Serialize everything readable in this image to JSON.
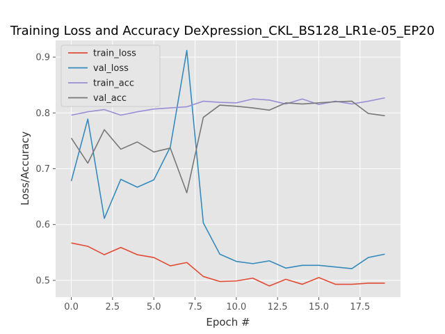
{
  "chart_data": {
    "type": "line",
    "title": "Training Loss and Accuracy DeXpression_CKL_BS128_LR1e-05_EP20",
    "xlabel": "Epoch #",
    "ylabel": "Loss/Accuracy",
    "xlim": [
      -0.95,
      19.95
    ],
    "ylim": [
      0.47,
      0.93
    ],
    "xticks": [
      0.0,
      2.5,
      5.0,
      7.5,
      10.0,
      12.5,
      15.0,
      17.5
    ],
    "xtick_labels": [
      "0.0",
      "2.5",
      "5.0",
      "7.5",
      "10.0",
      "12.5",
      "15.0",
      "17.5"
    ],
    "yticks": [
      0.5,
      0.6,
      0.7,
      0.8,
      0.9
    ],
    "ytick_labels": [
      "0.5",
      "0.6",
      "0.7",
      "0.8",
      "0.9"
    ],
    "grid": true,
    "legend_position": "top-left",
    "x": [
      0,
      1,
      2,
      3,
      4,
      5,
      6,
      7,
      8,
      9,
      10,
      11,
      12,
      13,
      14,
      15,
      16,
      17,
      18,
      19
    ],
    "series": [
      {
        "name": "train_loss",
        "color": "#e24a33",
        "values": [
          0.567,
          0.561,
          0.546,
          0.559,
          0.546,
          0.541,
          0.526,
          0.532,
          0.507,
          0.498,
          0.499,
          0.504,
          0.49,
          0.502,
          0.493,
          0.505,
          0.493,
          0.493,
          0.495,
          0.495
        ]
      },
      {
        "name": "val_loss",
        "color": "#348abd",
        "values": [
          0.678,
          0.789,
          0.611,
          0.681,
          0.667,
          0.68,
          0.739,
          0.912,
          0.603,
          0.547,
          0.534,
          0.53,
          0.535,
          0.522,
          0.527,
          0.527,
          0.524,
          0.521,
          0.541,
          0.547
        ]
      },
      {
        "name": "train_acc",
        "color": "#988ed5",
        "values": [
          0.796,
          0.802,
          0.806,
          0.796,
          0.802,
          0.807,
          0.809,
          0.811,
          0.821,
          0.819,
          0.818,
          0.825,
          0.823,
          0.816,
          0.825,
          0.815,
          0.821,
          0.816,
          0.821,
          0.827
        ]
      },
      {
        "name": "val_acc",
        "color": "#777777",
        "values": [
          0.755,
          0.71,
          0.77,
          0.735,
          0.748,
          0.73,
          0.737,
          0.657,
          0.792,
          0.814,
          0.812,
          0.809,
          0.805,
          0.818,
          0.816,
          0.818,
          0.82,
          0.821,
          0.799,
          0.795
        ]
      }
    ]
  }
}
